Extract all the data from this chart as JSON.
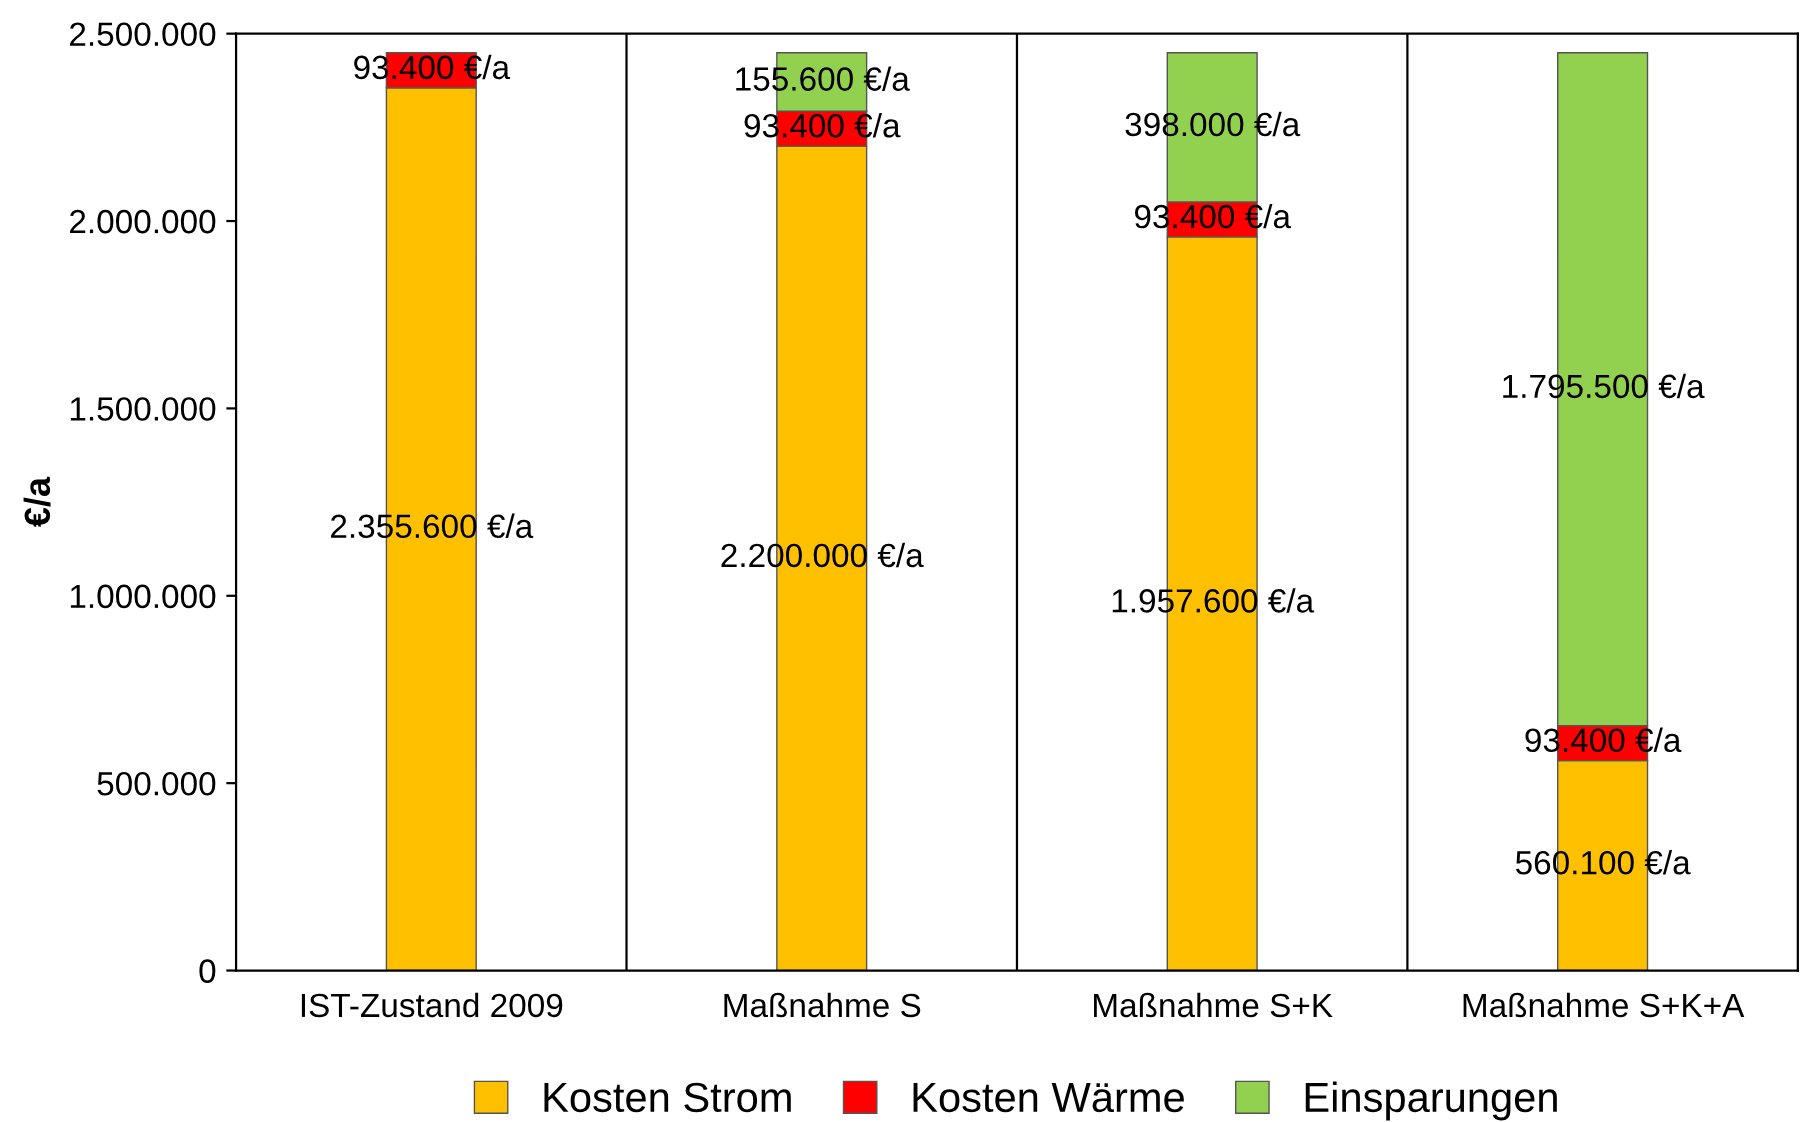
{
  "chart_data": {
    "type": "bar",
    "stacked": true,
    "ylabel": "€/a",
    "categories": [
      "IST-Zustand 2009",
      "Maßnahme S",
      "Maßnahme S+K",
      "Maßnahme S+K+A"
    ],
    "series": [
      {
        "name": "Kosten Strom",
        "color": "#ffc000",
        "values": [
          2355600,
          2200000,
          1957600,
          560100
        ],
        "value_labels": [
          "2.355.600 €/a",
          "2.200.000 €/a",
          "1.957.600 €/a",
          "560.100 €/a"
        ]
      },
      {
        "name": "Kosten Wärme",
        "color": "#ff0000",
        "values": [
          93400,
          93400,
          93400,
          93400
        ],
        "value_labels": [
          "93.400 €/a",
          "93.400 €/a",
          "93.400 €/a",
          "93.400 €/a"
        ]
      },
      {
        "name": "Einsparungen",
        "color": "#92d050",
        "values": [
          null,
          155600,
          398000,
          1795500
        ],
        "value_labels": [
          null,
          "155.600 €/a",
          "398.000 €/a",
          "1.795.500 €/a"
        ]
      }
    ],
    "ylim": [
      0,
      2500000
    ],
    "yticks": [
      {
        "value": 0,
        "label": "0"
      },
      {
        "value": 500000,
        "label": "500.000"
      },
      {
        "value": 1000000,
        "label": "1.000.000"
      },
      {
        "value": 1500000,
        "label": "1.500.000"
      },
      {
        "value": 2000000,
        "label": "2.000.000"
      },
      {
        "value": 2500000,
        "label": "2.500.000"
      }
    ],
    "grid": "x",
    "legend": "bottom"
  }
}
